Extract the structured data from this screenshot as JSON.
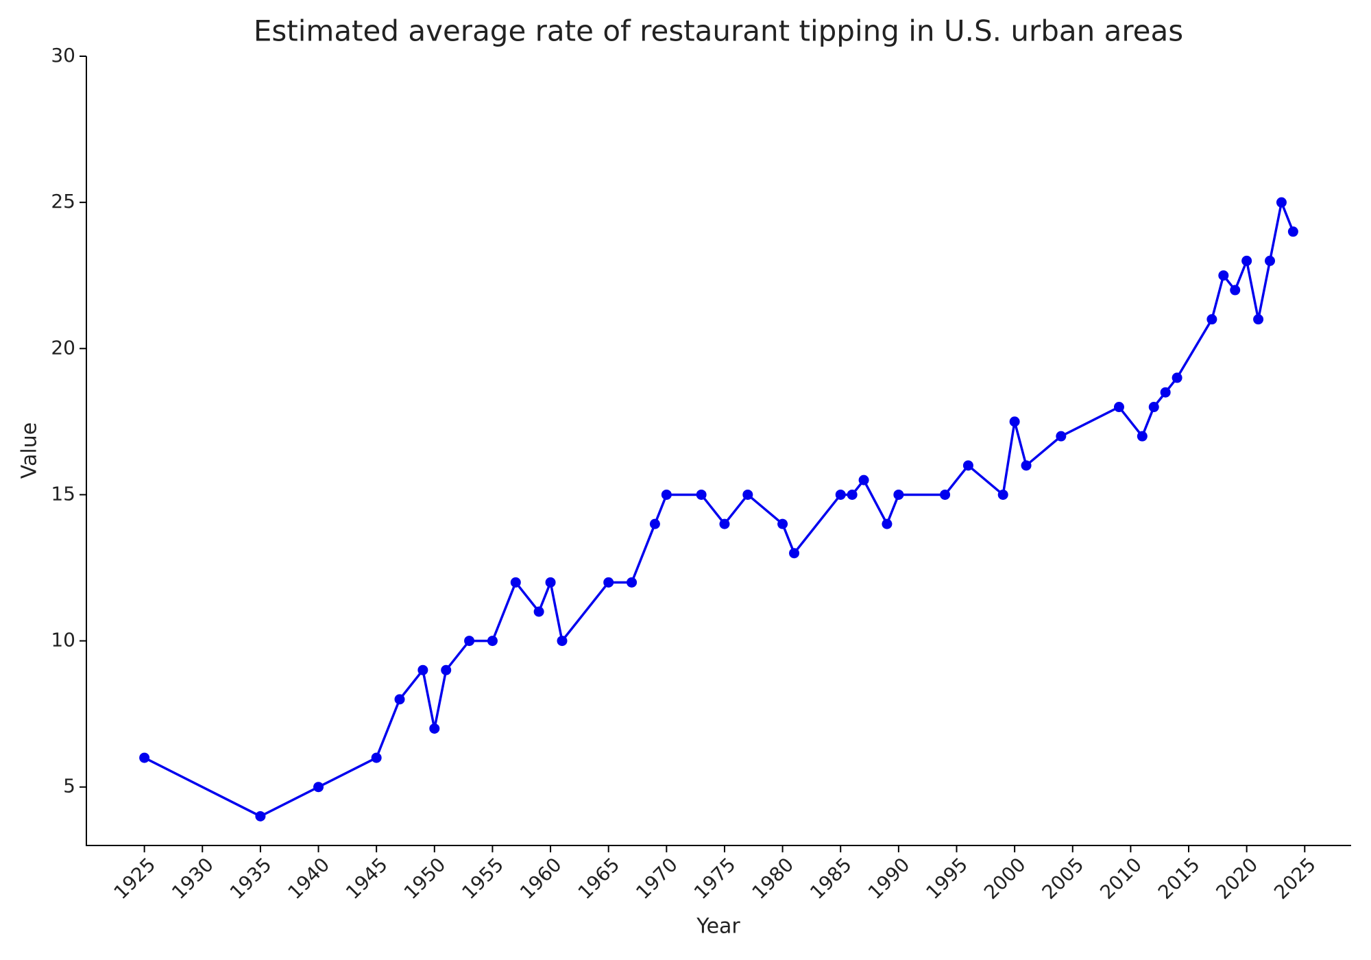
{
  "chart_data": {
    "type": "line",
    "title": "Estimated average rate of restaurant tipping in U.S. urban areas",
    "x_label": "Year",
    "y_label": "Value",
    "x": [
      1925,
      1935,
      1940,
      1945,
      1947,
      1949,
      1950,
      1951,
      1953,
      1955,
      1957,
      1959,
      1960,
      1961,
      1965,
      1967,
      1969,
      1970,
      1973,
      1975,
      1977,
      1980,
      1981,
      1985,
      1986,
      1987,
      1989,
      1990,
      1994,
      1996,
      1999,
      2000,
      2001,
      2004,
      2009,
      2011,
      2012,
      2013,
      2014,
      2017,
      2018,
      2019,
      2020,
      2021,
      2022,
      2023,
      2024
    ],
    "series": [
      {
        "name": "Value",
        "color": "#0000ee",
        "values": [
          6,
          4,
          5,
          6,
          8,
          9,
          7,
          9,
          10,
          10,
          12,
          11,
          12,
          10,
          12,
          12,
          14,
          15,
          15,
          14,
          15,
          14,
          13,
          15,
          15,
          15.5,
          14,
          15,
          15,
          16,
          15,
          17.5,
          16,
          17,
          18,
          17,
          18,
          18.5,
          19,
          21,
          22.5,
          22,
          23,
          21,
          23,
          25,
          24
        ]
      }
    ],
    "xlim": [
      1920,
      2029
    ],
    "ylim": [
      3,
      30
    ],
    "xticks": [
      1925,
      1930,
      1935,
      1940,
      1945,
      1950,
      1955,
      1960,
      1965,
      1970,
      1975,
      1980,
      1985,
      1990,
      1995,
      2000,
      2005,
      2010,
      2015,
      2020,
      2025
    ],
    "yticks": [
      5,
      10,
      15,
      20,
      25,
      30
    ]
  }
}
